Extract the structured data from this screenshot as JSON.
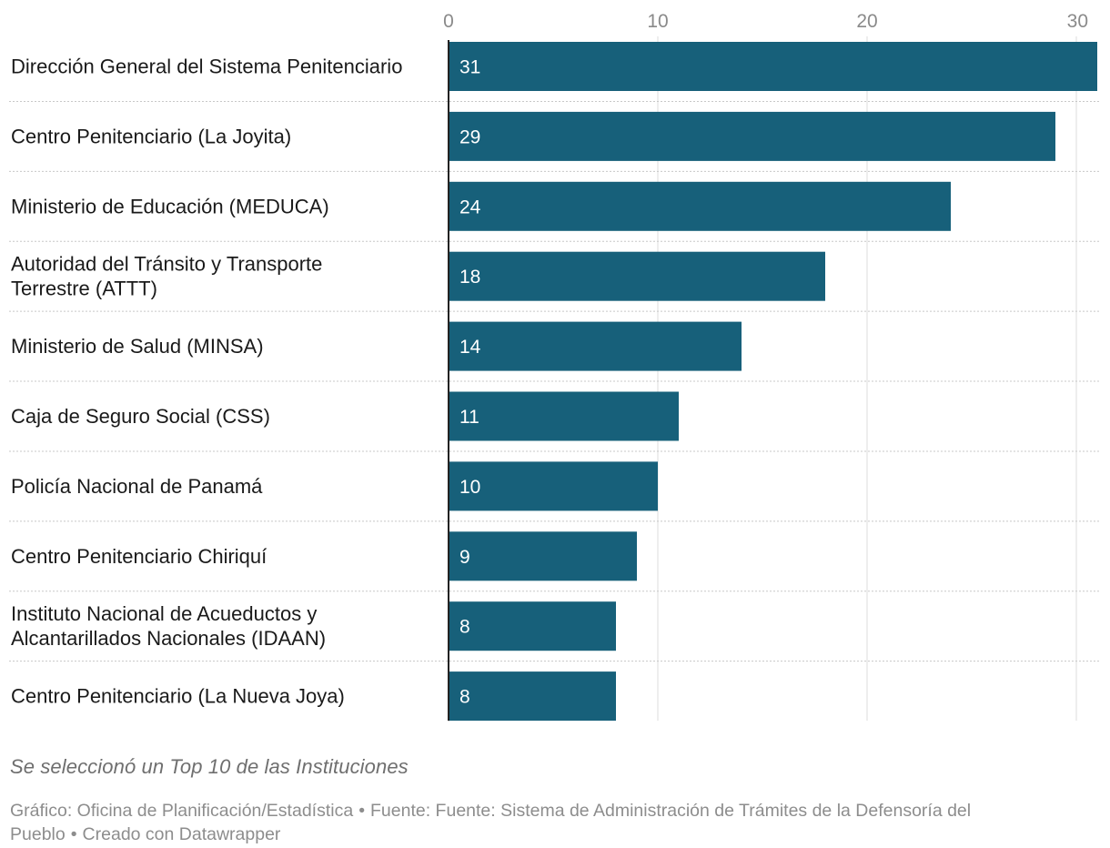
{
  "chart_data": {
    "type": "bar",
    "orientation": "horizontal",
    "categories": [
      [
        "Dirección General del Sistema Penitenciario"
      ],
      [
        "Centro Penitenciario (La Joyita)"
      ],
      [
        "Ministerio de Educación (MEDUCA)"
      ],
      [
        "Autoridad del Tránsito y Transporte",
        "Terrestre (ATTT)"
      ],
      [
        "Ministerio de Salud (MINSA)"
      ],
      [
        "Caja de Seguro Social (CSS)"
      ],
      [
        "Policía Nacional de Panamá"
      ],
      [
        "Centro Penitenciario Chiriquí"
      ],
      [
        "Instituto Nacional de Acueductos y",
        "Alcantarillados Nacionales (IDAAN)"
      ],
      [
        "Centro Penitenciario (La Nueva Joya)"
      ]
    ],
    "values": [
      31,
      29,
      24,
      18,
      14,
      11,
      10,
      9,
      8,
      8
    ],
    "xlim": [
      0,
      31
    ],
    "xticks": [
      0,
      10,
      20,
      30
    ],
    "grid": true,
    "colors": {
      "bar": "#17607a",
      "bar_label": "#ffffff",
      "category_text": "#1a1a1a",
      "tick_text": "#8a8a8a",
      "grid": "#dedede",
      "separator": "#c8c8c8",
      "axis": "#222222"
    },
    "title": "",
    "xlabel": "",
    "ylabel": ""
  },
  "notes": {
    "note": "Se seleccionó un Top 10 de las Instituciones",
    "credit": "Gráfico: Oficina de Planificación/Estadística",
    "separator": "•",
    "source": "Fuente: Fuente: Sistema de Administración de Trámites de la Defensoría del Pueblo",
    "tool": "Creado con Datawrapper"
  }
}
